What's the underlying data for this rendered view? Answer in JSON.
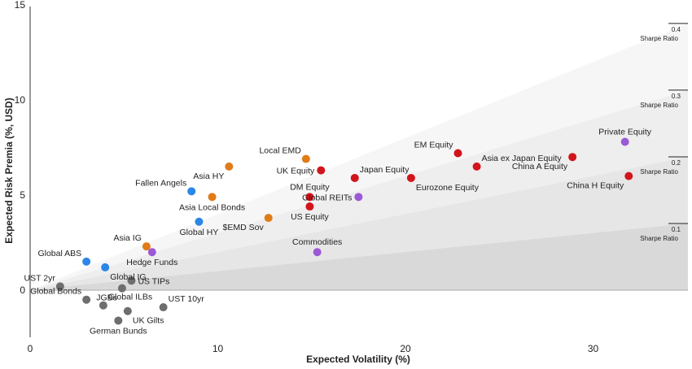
{
  "chart_data": {
    "type": "scatter",
    "xlabel": "Expected Volatility (%)",
    "ylabel": "Expected Risk Premia (%, USD)",
    "xlim": [
      0,
      35
    ],
    "ylim": [
      -2.5,
      15
    ],
    "x_ticks": [
      0,
      10,
      20,
      30
    ],
    "y_ticks": [
      0,
      5,
      10,
      15
    ],
    "grid": false,
    "colors": {
      "blue": "#2b86e6",
      "orange": "#e07b1a",
      "purple": "#9b59d6",
      "red": "#d2141c",
      "gray": "#6e6e6e"
    },
    "sharpe_bands": [
      {
        "ratio": 0.1,
        "label_value": "0.1",
        "label_text": "Sharpe Ratio",
        "color": "#d9d9d9"
      },
      {
        "ratio": 0.2,
        "label_value": "0.2",
        "label_text": "Sharpe Ratio",
        "color": "#e6e6e6"
      },
      {
        "ratio": 0.3,
        "label_value": "0.3",
        "label_text": "Sharpe Ratio",
        "color": "#eeeeee"
      },
      {
        "ratio": 0.4,
        "label_value": "0.4",
        "label_text": "Sharpe Ratio",
        "color": "#f6f6f6"
      }
    ],
    "points": [
      {
        "name": "Global ABS",
        "x": 3.0,
        "y": 1.5,
        "color": "blue",
        "label_pos": "above-left"
      },
      {
        "name": "Global IG",
        "x": 4.0,
        "y": 1.2,
        "color": "blue",
        "label_pos": "below-right"
      },
      {
        "name": "Fallen Angels",
        "x": 8.6,
        "y": 5.2,
        "color": "blue",
        "label_pos": "above-left"
      },
      {
        "name": "Global HY",
        "x": 9.0,
        "y": 3.6,
        "color": "blue",
        "label_pos": "below"
      },
      {
        "name": "Asia IG",
        "x": 6.2,
        "y": 2.3,
        "color": "orange",
        "label_pos": "above-left"
      },
      {
        "name": "Asia HY",
        "x": 10.6,
        "y": 6.5,
        "color": "orange",
        "label_pos": "below-left"
      },
      {
        "name": "Asia Local Bonds",
        "x": 9.7,
        "y": 4.9,
        "color": "orange",
        "label_pos": "below"
      },
      {
        "name": "$EMD Sov",
        "x": 12.7,
        "y": 3.8,
        "color": "orange",
        "label_pos": "below-left"
      },
      {
        "name": "Local EMD",
        "x": 14.7,
        "y": 6.9,
        "color": "orange",
        "label_pos": "above-left"
      },
      {
        "name": "Hedge Funds",
        "x": 6.5,
        "y": 2.0,
        "color": "purple",
        "label_pos": "below"
      },
      {
        "name": "Commodities",
        "x": 15.3,
        "y": 2.0,
        "color": "purple",
        "label_pos": "above"
      },
      {
        "name": "Global REITs",
        "x": 17.5,
        "y": 4.9,
        "color": "purple",
        "label_pos": "left"
      },
      {
        "name": "Private Equity",
        "x": 31.7,
        "y": 7.8,
        "color": "purple",
        "label_pos": "above"
      },
      {
        "name": "UK Equity",
        "x": 15.5,
        "y": 6.3,
        "color": "red",
        "label_pos": "left"
      },
      {
        "name": "DM Equity",
        "x": 14.9,
        "y": 4.9,
        "color": "red",
        "label_pos": "above"
      },
      {
        "name": "US Equity",
        "x": 14.9,
        "y": 4.4,
        "color": "red",
        "label_pos": "below"
      },
      {
        "name": "Japan Equity",
        "x": 17.3,
        "y": 5.9,
        "color": "red",
        "label_pos": "above-right"
      },
      {
        "name": "Eurozone Equity",
        "x": 20.3,
        "y": 5.9,
        "color": "red",
        "label_pos": "below-right"
      },
      {
        "name": "EM Equity",
        "x": 22.8,
        "y": 7.2,
        "color": "red",
        "label_pos": "above-left"
      },
      {
        "name": "Asia ex Japan Equity",
        "x": 23.8,
        "y": 6.5,
        "color": "red",
        "label_pos": "above-right"
      },
      {
        "name": "China A Equity",
        "x": 28.9,
        "y": 7.0,
        "color": "red",
        "label_pos": "below-left"
      },
      {
        "name": "China H Equity",
        "x": 31.9,
        "y": 6.0,
        "color": "red",
        "label_pos": "below-left"
      },
      {
        "name": "UST 2yr",
        "x": 1.6,
        "y": 0.2,
        "color": "gray",
        "label_pos": "above-left"
      },
      {
        "name": "Global Bonds",
        "x": 3.0,
        "y": -0.5,
        "color": "gray",
        "label_pos": "above-left"
      },
      {
        "name": "Global ILBs",
        "x": 3.9,
        "y": -0.8,
        "color": "gray",
        "label_pos": "above-right"
      },
      {
        "name": "US TIPs",
        "x": 5.4,
        "y": 0.5,
        "color": "gray",
        "label_pos": "right"
      },
      {
        "name": "UST 10yr",
        "x": 7.1,
        "y": -0.9,
        "color": "gray",
        "label_pos": "above-right"
      },
      {
        "name": "JGBs",
        "x": 4.9,
        "y": 0.1,
        "color": "gray",
        "label_pos": "below-left"
      },
      {
        "name": "UK Gilts",
        "x": 5.2,
        "y": -1.1,
        "color": "gray",
        "label_pos": "below-right"
      },
      {
        "name": "German Bunds",
        "x": 4.7,
        "y": -1.6,
        "color": "gray",
        "label_pos": "below"
      }
    ]
  }
}
